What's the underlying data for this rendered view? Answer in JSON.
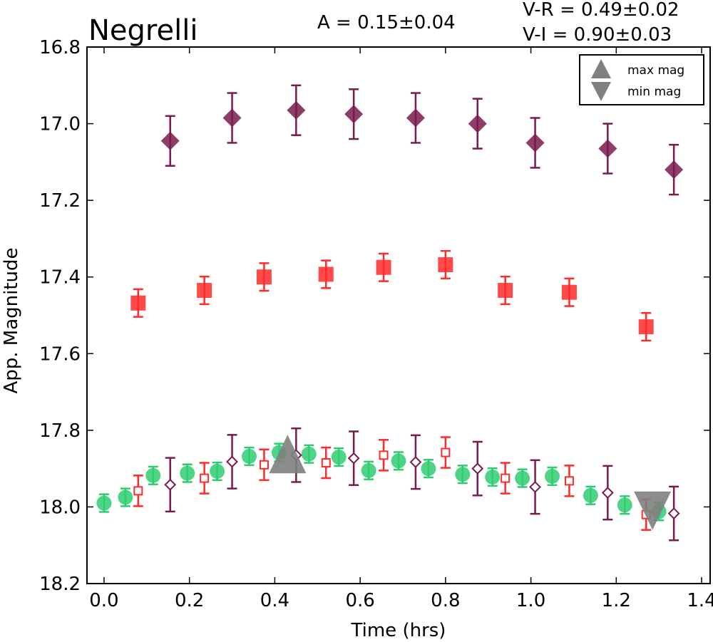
{
  "chart_data": {
    "type": "scatter",
    "title": "Negrelli",
    "annotations": {
      "amplitude": "A  = 0.15±0.04",
      "v_r": "V-R = 0.49±0.02",
      "v_i": "V-I  = 0.90±0.03"
    },
    "xlabel": "Time (hrs)",
    "ylabel": "App. Magnitude",
    "xlim": [
      -0.04,
      1.42
    ],
    "ylim": [
      18.2,
      16.8
    ],
    "y_inverted": true,
    "xticks": [
      "0.0",
      "0.2",
      "0.4",
      "0.6",
      "0.8",
      "1.0",
      "1.2",
      "1.4"
    ],
    "yticks": [
      "16.8",
      "17.0",
      "17.2",
      "17.4",
      "17.6",
      "17.8",
      "18.0",
      "18.2"
    ],
    "grid": false,
    "legend_position": "top-right",
    "legend": [
      {
        "label": "max mag",
        "marker": "triangle-up",
        "color": "#808080"
      },
      {
        "label": "min mag",
        "marker": "triangle-down",
        "color": "#808080"
      }
    ],
    "series": [
      {
        "marker": "diamond",
        "filled": true,
        "color": "#7a1a4e",
        "x": [
          0.155,
          0.3,
          0.45,
          0.585,
          0.73,
          0.875,
          1.01,
          1.18,
          1.335
        ],
        "y": [
          17.045,
          16.985,
          16.965,
          16.975,
          16.985,
          17.0,
          17.05,
          17.065,
          17.12
        ],
        "err": 0.065
      },
      {
        "marker": "square",
        "filled": true,
        "color": "#ff2a2a",
        "x": [
          0.08,
          0.235,
          0.375,
          0.52,
          0.655,
          0.8,
          0.94,
          1.09,
          1.27
        ],
        "y": [
          17.468,
          17.435,
          17.4,
          17.393,
          17.375,
          17.368,
          17.435,
          17.44,
          17.53
        ],
        "err": 0.036
      },
      {
        "marker": "circle",
        "filled": true,
        "color": "#2ecc71",
        "x": [
          0.0,
          0.05,
          0.115,
          0.195,
          0.265,
          0.34,
          0.41,
          0.48,
          0.55,
          0.62,
          0.69,
          0.76,
          0.84,
          0.91,
          0.98,
          1.05,
          1.14,
          1.22,
          1.3
        ],
        "y": [
          17.99,
          17.975,
          17.918,
          17.912,
          17.907,
          17.868,
          17.858,
          17.862,
          17.87,
          17.905,
          17.88,
          17.9,
          17.915,
          17.922,
          17.925,
          17.92,
          17.97,
          17.995,
          18.012
        ],
        "err": 0.023
      },
      {
        "marker": "square",
        "filled": false,
        "color": "#ff2a2a",
        "x": [
          0.08,
          0.235,
          0.375,
          0.52,
          0.655,
          0.8,
          0.94,
          1.09,
          1.27
        ],
        "y": [
          17.958,
          17.925,
          17.89,
          17.885,
          17.865,
          17.858,
          17.925,
          17.932,
          18.02
        ],
        "err": 0.04
      },
      {
        "marker": "diamond",
        "filled": false,
        "color": "#7a1a4e",
        "x": [
          0.155,
          0.3,
          0.45,
          0.585,
          0.73,
          0.875,
          1.01,
          1.18,
          1.335
        ],
        "y": [
          17.942,
          17.882,
          17.865,
          17.873,
          17.883,
          17.9,
          17.948,
          17.963,
          18.017
        ],
        "err": 0.07
      }
    ],
    "extrema": [
      {
        "label": "max mag",
        "marker": "triangle-up",
        "x": 0.43,
        "y": 17.862,
        "color": "#808080"
      },
      {
        "label": "min mag",
        "marker": "triangle-down",
        "x": 1.285,
        "y": 18.01,
        "color": "#808080"
      }
    ]
  }
}
